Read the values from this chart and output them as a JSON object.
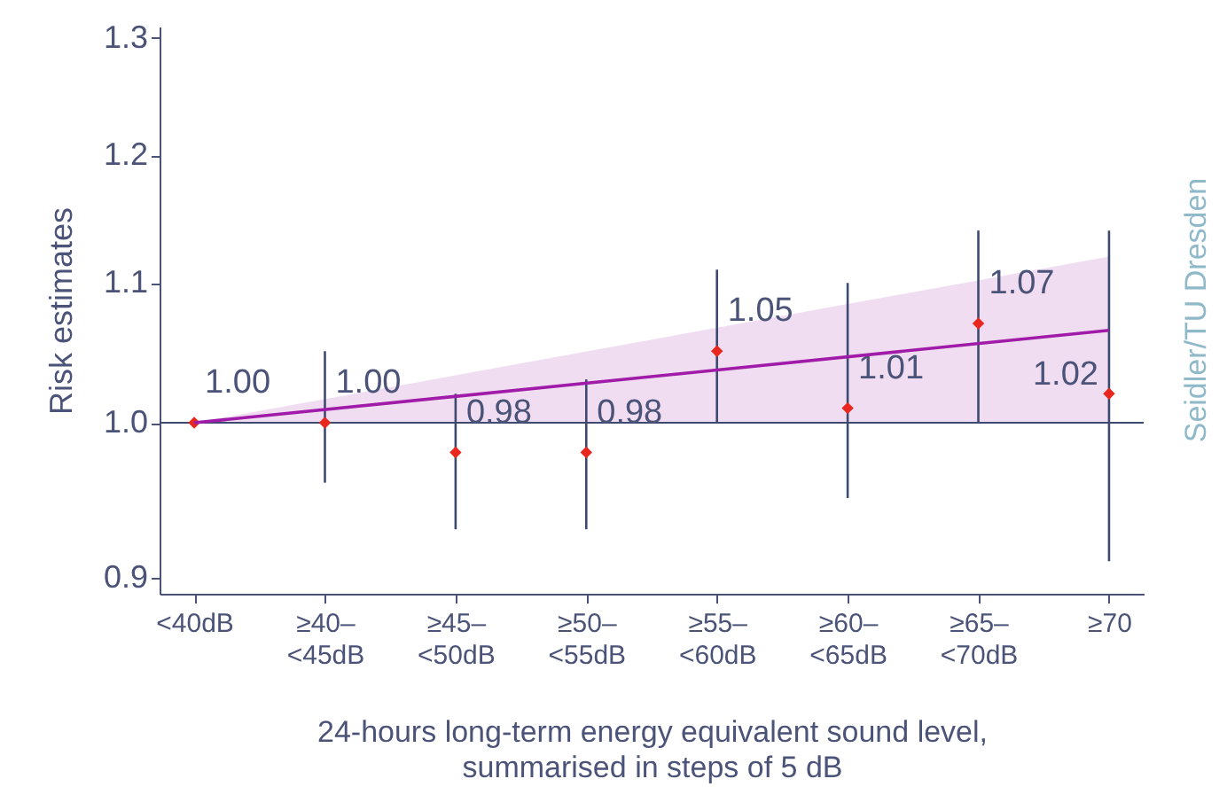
{
  "chart_data": {
    "type": "scatter",
    "xlabel": "24-hours long-term energy equivalent sound level,\nsummarised in steps of 5 dB",
    "ylabel": "Risk estimates",
    "categories": [
      "<40dB",
      "≥40–<45dB",
      "≥45–<50dB",
      "≥50–<55dB",
      "≥55–<60dB",
      "≥60–<65dB",
      "≥65–<70dB",
      "≥70"
    ],
    "series": [
      {
        "color": "#e8281e",
        "marker": "diamond",
        "values": [
          1.0,
          1.0,
          0.98,
          0.98,
          1.05,
          1.01,
          1.07,
          1.02
        ],
        "value_labels": [
          "1.00",
          "1.00",
          "0.98",
          "0.98",
          "1.05",
          "1.01",
          "1.07",
          "1.02"
        ],
        "errors": [
          null,
          [
            0.96,
            1.05
          ],
          [
            0.93,
            1.02
          ],
          [
            0.93,
            1.03
          ],
          [
            1.0,
            1.11
          ],
          [
            0.95,
            1.1
          ],
          [
            1.0,
            1.14
          ],
          [
            0.91,
            1.14
          ]
        ]
      },
      {
        "type": "line",
        "color": "#a01ca8",
        "x": [
          "<40dB",
          "≥70"
        ],
        "values": [
          1.0,
          1.065
        ],
        "lower": [
          1.0,
          1.0
        ],
        "upper": [
          1.0,
          1.12
        ]
      }
    ],
    "ref_lines": [
      {
        "axis": "y",
        "value": 1.0,
        "color": "#3d4a70"
      }
    ],
    "annotations": [
      "Seidler/TU Dresden"
    ],
    "log": "y",
    "ylim": [
      0.89,
      1.31
    ],
    "yticks": [
      0.9,
      {
        "value": 1.0,
        "label": "1.0"
      },
      1.1,
      1.2,
      1.3
    ],
    "grid": false
  }
}
